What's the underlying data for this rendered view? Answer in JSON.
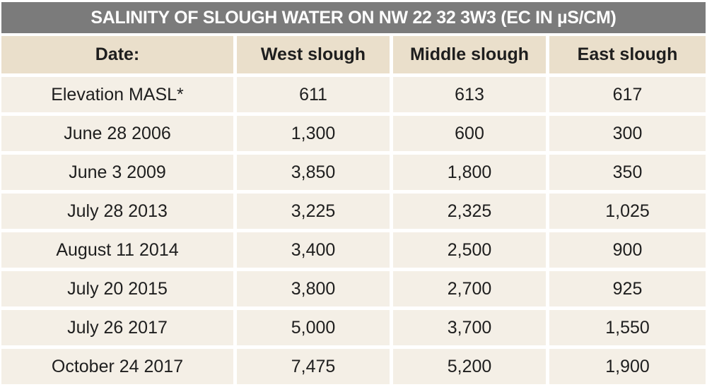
{
  "title": "SALINITY OF SLOUGH WATER ON NW 22 32 3W3 (EC IN µS/CM)",
  "columns": [
    "Date:",
    "West slough",
    "Middle slough",
    "East slough"
  ],
  "rows": [
    [
      "Elevation MASL*",
      "611",
      "613",
      "617"
    ],
    [
      "June 28 2006",
      "1,300",
      "600",
      "300"
    ],
    [
      "June 3 2009",
      "3,850",
      "1,800",
      "350"
    ],
    [
      "July 28 2013",
      "3,225",
      "2,325",
      "1,025"
    ],
    [
      "August 11 2014",
      "3,400",
      "2,500",
      "900"
    ],
    [
      "July 20 2015",
      "3,800",
      "2,700",
      "925"
    ],
    [
      "July 26 2017",
      "5,000",
      "3,700",
      "1,550"
    ],
    [
      "October 24 2017",
      "7,475",
      "5,200",
      "1,900"
    ]
  ],
  "colors": {
    "title_background": "#7b7b7b",
    "title_text": "#ffffff",
    "header_background": "#eadfcb",
    "row_background": "#f4efe6",
    "cell_text": "#1e1e1e"
  }
}
